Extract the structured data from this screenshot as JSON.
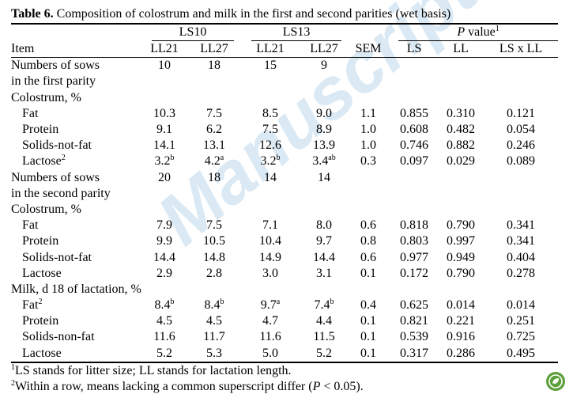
{
  "title": {
    "label": "Table 6.",
    "text": " Composition of colostrum and milk in the first and second parities (wet basis)"
  },
  "watermark": "Manuscript",
  "header": {
    "groups": {
      "ls10": "LS10",
      "ls13": "LS13",
      "p_value": "P",
      "p_value_rest": " value",
      "p_value_sup": "1"
    },
    "columns": [
      "Item",
      "LL21",
      "LL27",
      "LL21",
      "LL27",
      "SEM",
      "LS",
      "LL",
      "LS x LL"
    ]
  },
  "rows": [
    {
      "cells": [
        "Numbers of sows",
        "10",
        "18",
        "15",
        "9",
        "",
        "",
        "",
        ""
      ],
      "indent": 0
    },
    {
      "cells": [
        "in the first parity",
        "",
        "",
        "",
        "",
        "",
        "",
        "",
        ""
      ],
      "indent": 0
    },
    {
      "cells": [
        "Colostrum, %",
        "",
        "",
        "",
        "",
        "",
        "",
        "",
        ""
      ],
      "indent": 0
    },
    {
      "cells": [
        "Fat",
        "10.3",
        "7.5",
        "8.5",
        "9.0",
        "1.1",
        "0.855",
        "0.310",
        "0.121"
      ],
      "indent": 1
    },
    {
      "cells": [
        "Protein",
        "9.1",
        "6.2",
        "7.5",
        "8.9",
        "1.0",
        "0.608",
        "0.482",
        "0.054"
      ],
      "indent": 1
    },
    {
      "cells": [
        "Solids-not-fat",
        "14.1",
        "13.1",
        "12.6",
        "13.9",
        "1.0",
        "0.746",
        "0.882",
        "0.246"
      ],
      "indent": 1
    },
    {
      "cells": [
        "Lactose",
        "3.2",
        "4.2",
        "3.2",
        "3.4",
        "0.3",
        "0.097",
        "0.029",
        "0.089"
      ],
      "sups": [
        "2",
        "b",
        "a",
        "b",
        "ab",
        "",
        "",
        "",
        ""
      ],
      "indent": 1
    },
    {
      "cells": [
        "Numbers of sows",
        "20",
        "18",
        "14",
        "14",
        "",
        "",
        "",
        ""
      ],
      "indent": 0
    },
    {
      "cells": [
        "in the second parity",
        "",
        "",
        "",
        "",
        "",
        "",
        "",
        ""
      ],
      "indent": 0
    },
    {
      "cells": [
        "Colostrum, %",
        "",
        "",
        "",
        "",
        "",
        "",
        "",
        ""
      ],
      "indent": 0
    },
    {
      "cells": [
        "Fat",
        "7.9",
        "7.5",
        "7.1",
        "8.0",
        "0.6",
        "0.818",
        "0.790",
        "0.341"
      ],
      "indent": 1
    },
    {
      "cells": [
        "Protein",
        "9.9",
        "10.5",
        "10.4",
        "9.7",
        "0.8",
        "0.803",
        "0.997",
        "0.341"
      ],
      "indent": 1
    },
    {
      "cells": [
        "Solids-not-fat",
        "14.4",
        "14.8",
        "14.9",
        "14.4",
        "0.6",
        "0.977",
        "0.949",
        "0.404"
      ],
      "indent": 1
    },
    {
      "cells": [
        "Lactose",
        "2.9",
        "2.8",
        "3.0",
        "3.1",
        "0.1",
        "0.172",
        "0.790",
        "0.278"
      ],
      "indent": 1
    },
    {
      "cells": [
        "Milk, d 18 of lactation, %",
        "",
        "",
        "",
        "",
        "",
        "",
        "",
        ""
      ],
      "indent": 0
    },
    {
      "cells": [
        "Fat",
        "8.4",
        "8.4",
        "9.7",
        "7.4",
        "0.4",
        "0.625",
        "0.014",
        "0.014"
      ],
      "sups": [
        "2",
        "b",
        "b",
        "a",
        "b",
        "",
        "",
        "",
        ""
      ],
      "indent": 1
    },
    {
      "cells": [
        "Protein",
        "4.5",
        "4.5",
        "4.7",
        "4.4",
        "0.1",
        "0.821",
        "0.221",
        "0.251"
      ],
      "indent": 1
    },
    {
      "cells": [
        "Solids-non-fat",
        "11.6",
        "11.7",
        "11.6",
        "11.5",
        "0.1",
        "0.539",
        "0.916",
        "0.725"
      ],
      "indent": 1
    },
    {
      "cells": [
        "Lactose",
        "5.2",
        "5.3",
        "5.0",
        "5.2",
        "0.1",
        "0.317",
        "0.286",
        "0.495"
      ],
      "indent": 1
    }
  ],
  "notes": {
    "n1_sup": "1",
    "n1": "LS stands for litter size; LL stands for lactation length.",
    "n2_sup": "2",
    "n2_a": "Within a row, means lacking a common superscript differ (",
    "n2_p": "P",
    "n2_b": " < 0.05)."
  },
  "icon": "leaf-badge-icon"
}
